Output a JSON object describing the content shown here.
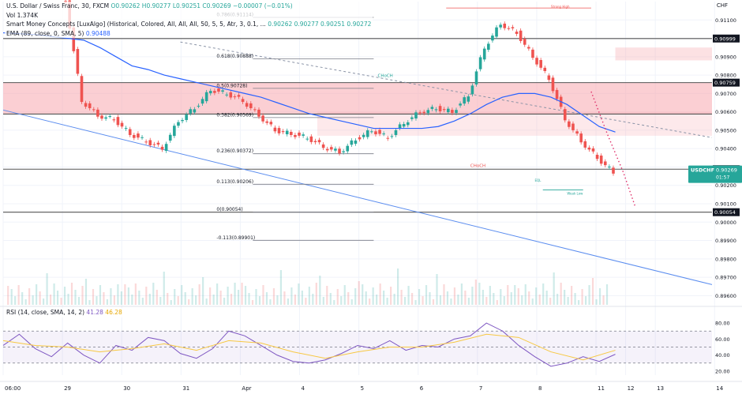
{
  "header": {
    "symbol_line": "U.S. Dollar / Swiss Franc, 30, FXCM",
    "ohlc": "O0.90262 H0.90277 L0.90251 C0.90269 −0.00007 (−0.01%)",
    "volume": "Vol  1.374K",
    "smc_indicator": "Smart Money Concepts [LuxAlgo] (Historical, Colored, All, All, All, 50, 5, 5, Atr, 3, 0.1, ...",
    "smc_values": "0.90262  0.90277  0.90251  0.90272",
    "ema_label": "EMA (89, close, 0, SMA, 5)",
    "ema_value": "0.90488",
    "rsi_label": "RSI (14, close, SMA, 14, 2)",
    "rsi_value": "41.28",
    "rsi_sma_value": "46.28",
    "currency": "CHF"
  },
  "price_tag": {
    "symbol": "USDCHF",
    "price": "0.90269",
    "countdown": "01:57",
    "color": "#26a69a"
  },
  "colors": {
    "up": "#26a69a",
    "down": "#ef5350",
    "ema": "#2962ff",
    "zone": "#f7a8ae",
    "rsi": "#7e57c2",
    "rsi_sma": "#f7c843",
    "fib": "#787b86",
    "trend": "#5b8def"
  },
  "chart_data": [
    {
      "type": "candlestick",
      "title": "U.S. Dollar / Swiss Franc, 30, FXCM",
      "ylabel": "CHF",
      "ylim": [
        0.8955,
        0.912
      ],
      "y_ticks": [
        "0.91100",
        "0.91000",
        "0.90900",
        "0.90800",
        "0.90700",
        "0.90600",
        "0.90500",
        "0.90400",
        "0.90300",
        "0.90200",
        "0.90100",
        "0.90000",
        "0.89900",
        "0.89800",
        "0.89700",
        "0.89600"
      ],
      "x_ticks": [
        "06:00",
        "29",
        "30",
        "31",
        "Apr",
        "4",
        "5",
        "6",
        "7",
        "8",
        "11",
        "12",
        "13",
        "14"
      ],
      "series": [
        {
          "name": "EMA (89, close, 0, SMA, 5)",
          "type": "line",
          "x": [
            0,
            4,
            6,
            8,
            10,
            12,
            14,
            16,
            18,
            20,
            22,
            24,
            26,
            28,
            30,
            32,
            34,
            36,
            38,
            40,
            42,
            44,
            46,
            48,
            50,
            52,
            54,
            56,
            58,
            60,
            62,
            64,
            66,
            68,
            70,
            72,
            74,
            76
          ],
          "values": [
            0.9103,
            0.9102,
            0.9101,
            0.91,
            0.9099,
            0.9095,
            0.909,
            0.9085,
            0.9083,
            0.908,
            0.9078,
            0.9076,
            0.9074,
            0.9072,
            0.907,
            0.9068,
            0.9065,
            0.9062,
            0.9059,
            0.9057,
            0.9055,
            0.9053,
            0.9051,
            0.9051,
            0.9051,
            0.9051,
            0.9052,
            0.9055,
            0.9059,
            0.9064,
            0.9068,
            0.907,
            0.907,
            0.9068,
            0.9064,
            0.9058,
            0.9052,
            0.9049
          ]
        },
        {
          "name": "Close",
          "type": "line",
          "x": [
            0,
            2,
            4,
            6,
            8,
            10,
            12,
            14,
            16,
            18,
            20,
            22,
            24,
            26,
            28,
            30,
            32,
            34,
            36,
            38,
            40,
            42,
            44,
            46,
            48,
            50,
            52,
            54,
            56,
            58,
            60,
            62,
            64,
            66,
            68,
            70,
            72,
            74,
            76
          ],
          "values": [
            0.9126,
            0.9124,
            0.9128,
            0.9126,
            0.912,
            0.9066,
            0.9058,
            0.9056,
            0.9048,
            0.9044,
            0.904,
            0.9055,
            0.9062,
            0.9072,
            0.907,
            0.9066,
            0.9058,
            0.905,
            0.9048,
            0.9046,
            0.9041,
            0.9038,
            0.9045,
            0.905,
            0.9046,
            0.9054,
            0.906,
            0.9062,
            0.906,
            0.9069,
            0.9095,
            0.9108,
            0.9103,
            0.909,
            0.9078,
            0.9056,
            0.9044,
            0.9035,
            0.9027
          ]
        }
      ],
      "fib_levels": [
        {
          "label": "0.786(0.91114)",
          "value": 0.91114
        },
        {
          "label": "0.618(0.90888)",
          "value": 0.90888
        },
        {
          "label": "0.5(0.90728)",
          "value": 0.90728
        },
        {
          "label": "0.382(0.90569)",
          "value": 0.90569
        },
        {
          "label": "0.236(0.90372)",
          "value": 0.90372
        },
        {
          "label": "0.113(0.90206)",
          "value": 0.90206
        },
        {
          "label": "0(0.90054)",
          "value": 0.90054
        },
        {
          "label": "-0.113(0.89901)",
          "value": 0.89901
        }
      ],
      "axis_markers": [
        "0.90999",
        "0.90759",
        "0.90288",
        "0.90054"
      ],
      "annotations": [
        "CHoCH",
        "CHoCH",
        "EQL",
        "Strong High",
        "Weak Low"
      ]
    },
    {
      "type": "line",
      "title": "RSI (14, close, SMA, 14, 2)",
      "ylim": [
        15,
        85
      ],
      "y_ticks": [
        "80.00",
        "60.00",
        "40.00",
        "20.00"
      ],
      "bands": [
        30,
        50,
        70
      ],
      "series": [
        {
          "name": "RSI",
          "x": [
            0,
            2,
            4,
            6,
            8,
            10,
            12,
            14,
            16,
            18,
            20,
            22,
            24,
            26,
            28,
            30,
            32,
            34,
            36,
            38,
            40,
            42,
            44,
            46,
            48,
            50,
            52,
            54,
            56,
            58,
            60,
            62,
            64,
            66,
            68,
            70,
            72,
            74,
            76
          ],
          "values": [
            52,
            66,
            48,
            38,
            55,
            40,
            30,
            52,
            46,
            62,
            58,
            42,
            36,
            48,
            70,
            64,
            52,
            40,
            32,
            30,
            34,
            42,
            52,
            48,
            58,
            46,
            52,
            50,
            60,
            64,
            80,
            70,
            52,
            38,
            26,
            30,
            38,
            32,
            41
          ]
        },
        {
          "name": "RSI-based MA",
          "x": [
            0,
            4,
            8,
            12,
            16,
            20,
            24,
            28,
            32,
            36,
            40,
            44,
            48,
            52,
            56,
            60,
            64,
            68,
            72,
            76
          ],
          "values": [
            58,
            52,
            50,
            44,
            48,
            54,
            46,
            58,
            55,
            44,
            36,
            44,
            50,
            50,
            56,
            66,
            62,
            44,
            34,
            46
          ]
        }
      ]
    }
  ]
}
